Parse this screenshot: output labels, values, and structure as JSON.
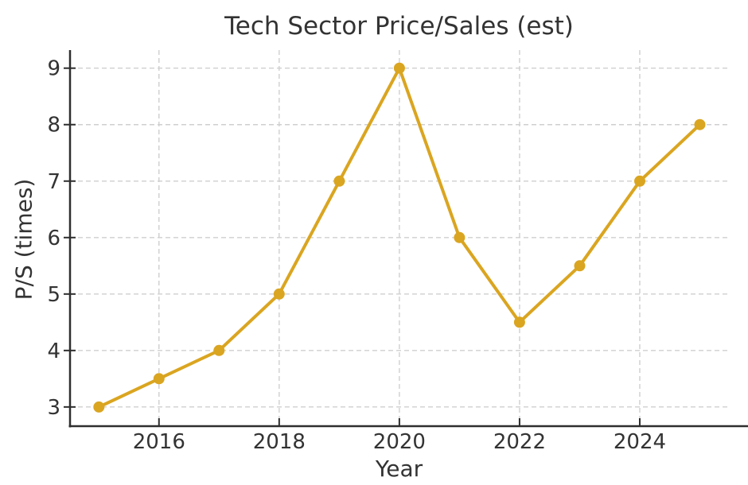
{
  "chart_data": {
    "type": "line",
    "title": "Tech Sector Price/Sales (est)",
    "xlabel": "Year",
    "ylabel": "P/S (times)",
    "x": [
      2015,
      2016,
      2017,
      2018,
      2019,
      2020,
      2021,
      2022,
      2023,
      2024,
      2025
    ],
    "values": [
      3.0,
      3.5,
      4.0,
      5.0,
      7.0,
      9.0,
      6.0,
      4.5,
      5.5,
      7.0,
      8.0
    ],
    "x_ticks": [
      2016,
      2018,
      2020,
      2022,
      2024
    ],
    "y_ticks": [
      3,
      4,
      5,
      6,
      7,
      8,
      9
    ],
    "xlim": [
      2014.52,
      2025.47
    ],
    "ylim": [
      2.66,
      9.32
    ],
    "grid": true,
    "grid_style": "dashed",
    "legend": false,
    "marker": "o",
    "colors": {
      "line": "#DAA520",
      "marker": "#DAA520",
      "grid": "#cfcfcf",
      "axis": "#2e2e2e",
      "text": "#333333"
    }
  }
}
